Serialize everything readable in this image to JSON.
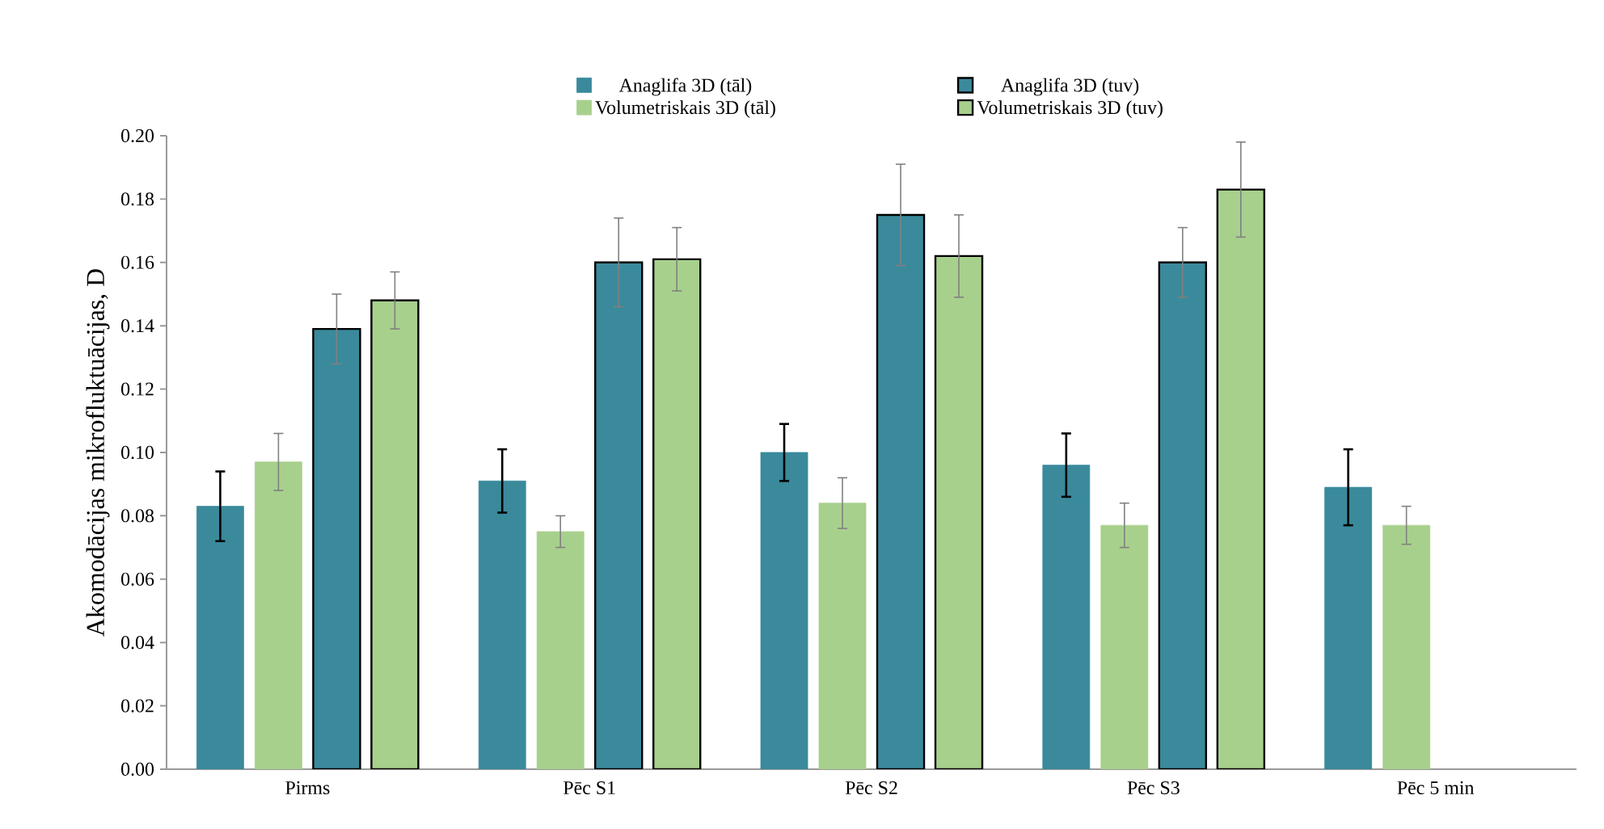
{
  "chart_data": {
    "type": "bar",
    "ylabel": "Akomodācijas mikrofluktuācijas, D",
    "categories": [
      "Pirms",
      "Pēc S1",
      "Pēc S2",
      "Pēc S3",
      "Pēc 5 min"
    ],
    "series": [
      {
        "name": "Anaglifa 3D (tāl)",
        "color": "#3a8a9c",
        "values": [
          0.083,
          0.091,
          0.1,
          0.096,
          0.089
        ],
        "errors": [
          0.011,
          0.01,
          0.009,
          0.01,
          0.012
        ]
      },
      {
        "name": "Volumetriskais 3D (tāl)",
        "color": "#a8d08d",
        "values": [
          0.097,
          0.075,
          0.084,
          0.077,
          0.077
        ],
        "errors": [
          0.009,
          0.005,
          0.008,
          0.007,
          0.006
        ]
      },
      {
        "name": "Anaglifa 3D (tuv)",
        "color": "#3a8a9c",
        "values": [
          0.139,
          0.16,
          0.175,
          0.16,
          null
        ],
        "errors": [
          0.011,
          0.014,
          0.016,
          0.011,
          null
        ]
      },
      {
        "name": "Volumetriskais 3D (tuv)",
        "color": "#a8d08d",
        "values": [
          0.148,
          0.161,
          0.162,
          0.183,
          null
        ],
        "errors": [
          0.009,
          0.01,
          0.013,
          0.015,
          null
        ]
      }
    ],
    "ylim": [
      0,
      0.2
    ],
    "yticks": [
      {
        "value": 0,
        "label": "0.00"
      },
      {
        "value": 0.02,
        "label": "0.02"
      },
      {
        "value": 0.04,
        "label": "0.04"
      },
      {
        "value": 0.06,
        "label": "0.06"
      },
      {
        "value": 0.08,
        "label": "0.08"
      },
      {
        "value": 0.1,
        "label": "0.10"
      },
      {
        "value": 0.12,
        "label": "0.12"
      },
      {
        "value": 0.14,
        "label": "0.14"
      },
      {
        "value": 0.16,
        "label": "0.16"
      },
      {
        "value": 0.18,
        "label": "0.18"
      },
      {
        "value": 0.2,
        "label": "0.20"
      }
    ],
    "grid": false,
    "legend": "top"
  }
}
